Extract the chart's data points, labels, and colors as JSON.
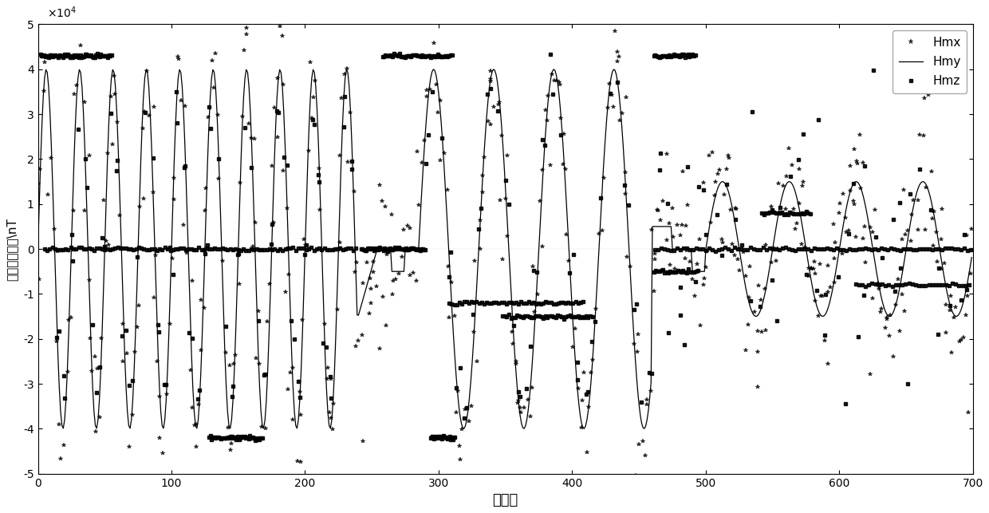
{
  "title": "",
  "xlabel": "采样点",
  "ylabel": "地磁场矢量值\\nT",
  "xlim": [
    0,
    700
  ],
  "ylim": [
    -50000,
    50000
  ],
  "background_color": "#ffffff",
  "legend_labels": [
    "Hmx",
    "Hmy",
    "Hmz"
  ],
  "figsize": [
    12.4,
    6.43
  ],
  "dpi": 100
}
